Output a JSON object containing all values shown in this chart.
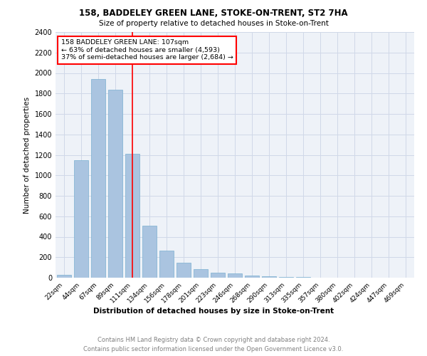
{
  "title1": "158, BADDELEY GREEN LANE, STOKE-ON-TRENT, ST2 7HA",
  "title2": "Size of property relative to detached houses in Stoke-on-Trent",
  "xlabel": "Distribution of detached houses by size in Stoke-on-Trent",
  "ylabel": "Number of detached properties",
  "categories": [
    "22sqm",
    "44sqm",
    "67sqm",
    "89sqm",
    "111sqm",
    "134sqm",
    "156sqm",
    "178sqm",
    "201sqm",
    "223sqm",
    "246sqm",
    "268sqm",
    "290sqm",
    "313sqm",
    "335sqm",
    "357sqm",
    "380sqm",
    "402sqm",
    "424sqm",
    "447sqm",
    "469sqm"
  ],
  "values": [
    28,
    1150,
    1940,
    1840,
    1210,
    510,
    265,
    148,
    82,
    52,
    42,
    18,
    14,
    9,
    4,
    3,
    2,
    2,
    1,
    1,
    1
  ],
  "bar_color": "#aac4e0",
  "bar_edge_color": "#7aafd0",
  "vline_x": 4,
  "vline_color": "red",
  "annotation_line1": "158 BADDELEY GREEN LANE: 107sqm",
  "annotation_line2": "← 63% of detached houses are smaller (4,593)",
  "annotation_line3": "37% of semi-detached houses are larger (2,684) →",
  "annotation_box_color": "white",
  "annotation_box_edge": "red",
  "ylim": [
    0,
    2400
  ],
  "yticks": [
    0,
    200,
    400,
    600,
    800,
    1000,
    1200,
    1400,
    1600,
    1800,
    2000,
    2200,
    2400
  ],
  "grid_color": "#d0d8e8",
  "footnote1": "Contains HM Land Registry data © Crown copyright and database right 2024.",
  "footnote2": "Contains public sector information licensed under the Open Government Licence v3.0.",
  "background_color": "#eef2f8"
}
